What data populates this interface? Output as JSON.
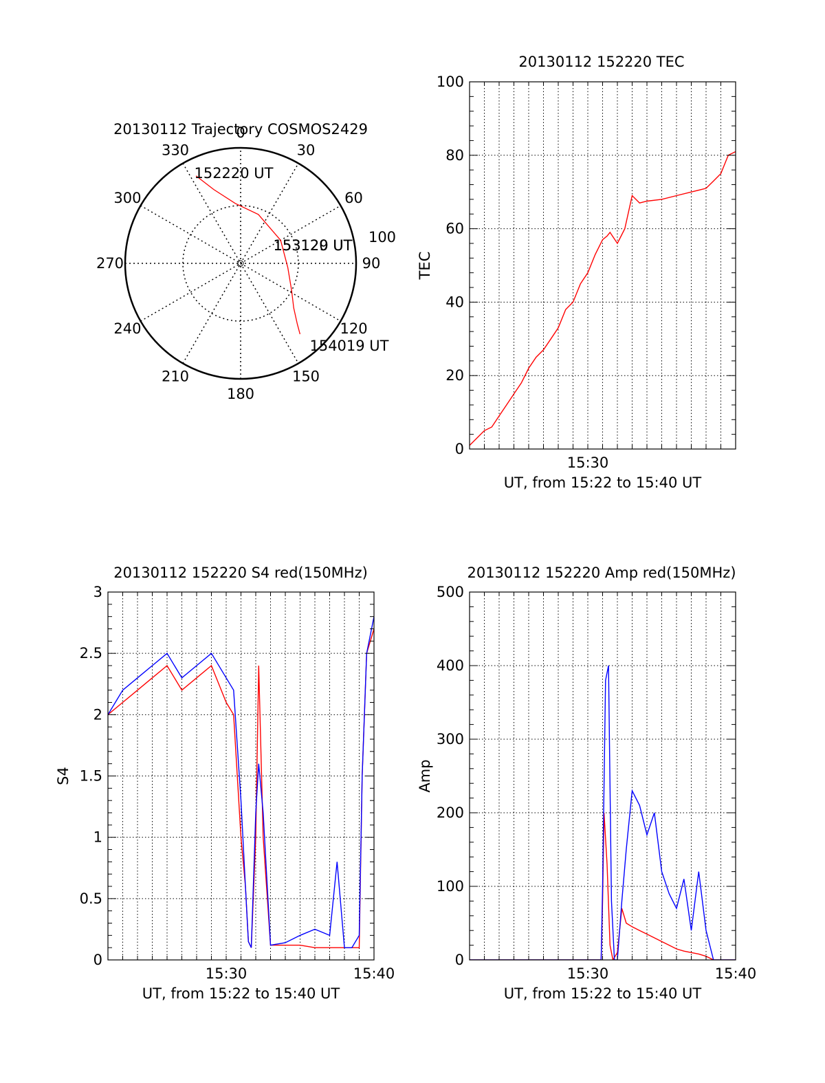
{
  "colors": {
    "red_series": "#ff0000",
    "blue_series": "#0000ff",
    "axis": "#000000",
    "grid": "#000000"
  },
  "chart_data": [
    {
      "type": "polar",
      "title": "20130112 Trajectory COSMOS2429",
      "angle_labels": [
        "0",
        "30",
        "60",
        "90",
        "120",
        "150",
        "180",
        "210",
        "240",
        "270",
        "300",
        "330"
      ],
      "radius_label": "100",
      "zenith_range": [
        0,
        100
      ],
      "grid": true,
      "series": [
        {
          "color": "red",
          "points": [
            [
              333,
              85
            ],
            [
              340,
              68
            ],
            [
              355,
              52
            ],
            [
              20,
              45
            ],
            [
              60,
              40
            ],
            [
              95,
              41
            ],
            [
              118,
              50
            ],
            [
              130,
              60
            ],
            [
              137,
              72
            ],
            [
              140,
              80
            ]
          ]
        }
      ],
      "annotations": [
        {
          "text": "152220 UT",
          "azimuth": 333,
          "zenith": 85
        },
        {
          "text": "153129 UT",
          "azimuth": 60,
          "zenith": 40
        },
        {
          "text": "153120 UT",
          "azimuth": 60,
          "zenith": 40
        },
        {
          "text": "154019 UT",
          "azimuth": 140,
          "zenith": 80
        }
      ]
    },
    {
      "type": "line",
      "title": "20130112 152220 TEC",
      "xlabel": "UT, from 15:22 to 15:40 UT",
      "ylabel": "TEC",
      "xlim": [
        0,
        18
      ],
      "ylim": [
        0,
        100
      ],
      "xtick_labels": [
        {
          "pos": 8,
          "text": "15:30"
        }
      ],
      "yticks": [
        0,
        20,
        40,
        60,
        80,
        100
      ],
      "grid": true,
      "series": [
        {
          "color": "red",
          "x": [
            0,
            0.5,
            1,
            1.5,
            2,
            2.5,
            3,
            3.5,
            4,
            4.5,
            5,
            5.5,
            6,
            6.5,
            7,
            7.5,
            8,
            8.5,
            9,
            9.3,
            9.5,
            10,
            10.5,
            11,
            11.5,
            12,
            13,
            14,
            15,
            16,
            16.5,
            17,
            17.5,
            18
          ],
          "y": [
            1,
            3,
            5,
            6,
            9,
            12,
            15,
            18,
            22,
            25,
            27,
            30,
            33,
            38,
            40,
            45,
            48,
            53,
            57,
            58,
            59,
            56,
            60,
            69,
            67,
            67.5,
            68,
            69,
            70,
            71,
            73,
            75,
            80,
            81
          ]
        }
      ]
    },
    {
      "type": "line",
      "title": "20130112 152220 S4 red(150MHz)",
      "xlabel": "UT, from 15:22 to 15:40 UT",
      "ylabel": "S4",
      "xlim": [
        0,
        18
      ],
      "ylim": [
        0,
        3
      ],
      "xtick_labels": [
        {
          "pos": 8,
          "text": "15:30"
        },
        {
          "pos": 18,
          "text": "15:40"
        }
      ],
      "yticks": [
        0,
        0.5,
        1,
        1.5,
        2,
        2.5,
        3
      ],
      "grid": true,
      "series": [
        {
          "color": "red",
          "x": [
            0,
            1,
            2,
            3,
            4,
            5,
            6,
            7,
            8,
            8.5,
            9,
            9.3,
            9.5,
            9.7,
            10,
            10.2,
            10.5,
            11,
            12,
            13,
            14,
            15,
            16,
            16.5,
            17,
            17.2,
            17.5,
            18
          ],
          "y": [
            2.0,
            2.1,
            2.2,
            2.3,
            2.4,
            2.2,
            2.3,
            2.4,
            2.1,
            2.0,
            1.0,
            0.6,
            0.15,
            0.1,
            1.0,
            2.4,
            1.0,
            0.12,
            0.12,
            0.12,
            0.1,
            0.1,
            0.1,
            0.1,
            0.1,
            1.5,
            2.5,
            2.7
          ]
        },
        {
          "color": "blue",
          "x": [
            0,
            1,
            2,
            3,
            4,
            5,
            6,
            7,
            8,
            8.5,
            9,
            9.3,
            9.5,
            9.7,
            10,
            10.2,
            10.5,
            11,
            12,
            13,
            14,
            15,
            15.5,
            16,
            16.5,
            17,
            17.2,
            17.5,
            18
          ],
          "y": [
            2.0,
            2.2,
            2.3,
            2.4,
            2.5,
            2.3,
            2.4,
            2.5,
            2.3,
            2.2,
            1.3,
            0.6,
            0.15,
            0.1,
            1.2,
            1.6,
            1.2,
            0.12,
            0.14,
            0.2,
            0.25,
            0.2,
            0.8,
            0.1,
            0.1,
            0.2,
            1.5,
            2.5,
            2.8
          ]
        }
      ]
    },
    {
      "type": "line",
      "title": "20130112 152220 Amp red(150MHz)",
      "xlabel": "UT, from 15:22 to 15:40 UT",
      "ylabel": "Amp",
      "xlim": [
        0,
        18
      ],
      "ylim": [
        0,
        500
      ],
      "xtick_labels": [
        {
          "pos": 8,
          "text": "15:30"
        },
        {
          "pos": 18,
          "text": "15:40"
        }
      ],
      "yticks": [
        0,
        100,
        200,
        300,
        400,
        500
      ],
      "grid": true,
      "series": [
        {
          "color": "red",
          "x": [
            0,
            8,
            8.9,
            9,
            9.1,
            9.3,
            9.5,
            9.7,
            10,
            10.3,
            10.6,
            11,
            11.5,
            12,
            12.5,
            13,
            13.5,
            14,
            14.5,
            15,
            15.5,
            16,
            16.5,
            18
          ],
          "y": [
            0,
            0,
            0,
            80,
            200,
            130,
            20,
            0,
            10,
            70,
            50,
            45,
            40,
            35,
            30,
            25,
            20,
            15,
            12,
            10,
            8,
            5,
            0,
            0
          ]
        },
        {
          "color": "blue",
          "x": [
            0,
            8,
            8.9,
            9,
            9.2,
            9.4,
            9.6,
            9.8,
            10,
            10.3,
            10.6,
            11,
            11.5,
            12,
            12.5,
            13,
            13.5,
            14,
            14.5,
            15,
            15.5,
            16,
            16.5,
            17,
            18
          ],
          "y": [
            0,
            0,
            0,
            100,
            380,
            400,
            80,
            0,
            0,
            80,
            150,
            230,
            210,
            170,
            200,
            120,
            90,
            70,
            110,
            40,
            120,
            40,
            0,
            0,
            0
          ]
        }
      ]
    }
  ]
}
